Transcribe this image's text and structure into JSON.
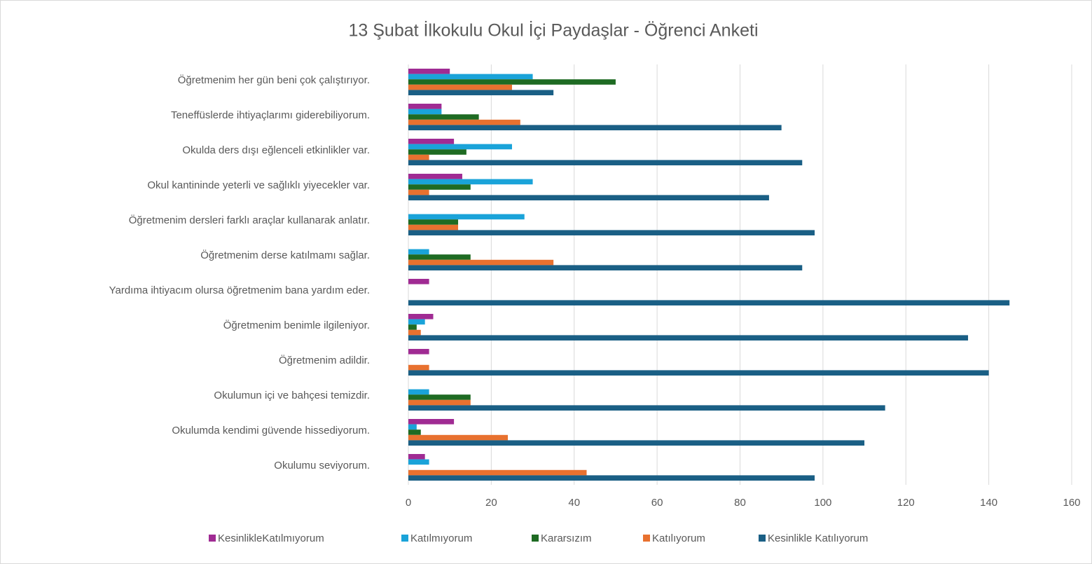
{
  "chart_data": {
    "type": "bar",
    "orientation": "horizontal",
    "title": "13 Şubat İlkokulu Okul İçi Paydaşlar   - Öğrenci Anketi",
    "categories": [
      "Öğretmenim her gün beni çok çalıştırıyor.",
      "Teneffüslerde ihtiyaçlarımı giderebiliyorum.",
      "Okulda ders dışı eğlenceli etkinlikler var.",
      "Okul kantininde yeterli ve sağlıklı yiyecekler var.",
      "Öğretmenim dersleri farklı araçlar kullanarak anlatır.",
      "Öğretmenim derse katılmamı sağlar.",
      "Yardıma ihtiyacım olursa öğretmenim bana yardım eder.",
      "Öğretmenim benimle ilgileniyor.",
      "Öğretmenim adildir.",
      "Okulumun içi ve bahçesi temizdir.",
      "Okulumda kendimi güvende hissediyorum.",
      "Okulumu seviyorum."
    ],
    "series": [
      {
        "name": "KesinlikleKatılmıyorum",
        "color": "#a02b93",
        "values": [
          10,
          8,
          11,
          13,
          0,
          0,
          5,
          6,
          5,
          0,
          11,
          4
        ]
      },
      {
        "name": "Katılmıyorum",
        "color": "#1aa3d9",
        "values": [
          30,
          8,
          25,
          30,
          28,
          5,
          0,
          4,
          0,
          5,
          2,
          5
        ]
      },
      {
        "name": "Kararsızım",
        "color": "#1e6b23",
        "values": [
          50,
          17,
          14,
          15,
          12,
          15,
          0,
          2,
          0,
          15,
          3,
          0
        ]
      },
      {
        "name": "Katılıyorum",
        "color": "#e8712f",
        "values": [
          25,
          27,
          5,
          5,
          12,
          35,
          0,
          3,
          5,
          15,
          24,
          43
        ]
      },
      {
        "name": "Kesinlikle Katılıyorum",
        "color": "#1a5f85",
        "values": [
          35,
          90,
          95,
          87,
          98,
          95,
          145,
          135,
          140,
          115,
          110,
          98
        ]
      }
    ],
    "xlim": [
      0,
      160
    ],
    "xticks": [
      0,
      20,
      40,
      60,
      80,
      100,
      120,
      140,
      160
    ],
    "grid": true,
    "legend": "bottom"
  }
}
